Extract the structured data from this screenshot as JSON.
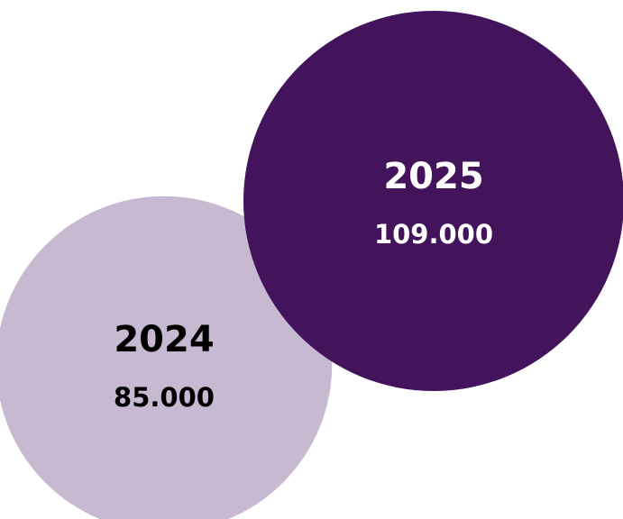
{
  "chart_data": {
    "type": "bubble",
    "title": "",
    "items": [
      {
        "label": "2024",
        "value": 85000,
        "value_label": "85.000",
        "color": "#c6b9d1",
        "text_color": "#000000"
      },
      {
        "label": "2025",
        "value": 109000,
        "value_label": "109.000",
        "color": "#43145b",
        "text_color": "#ffffff"
      }
    ]
  }
}
